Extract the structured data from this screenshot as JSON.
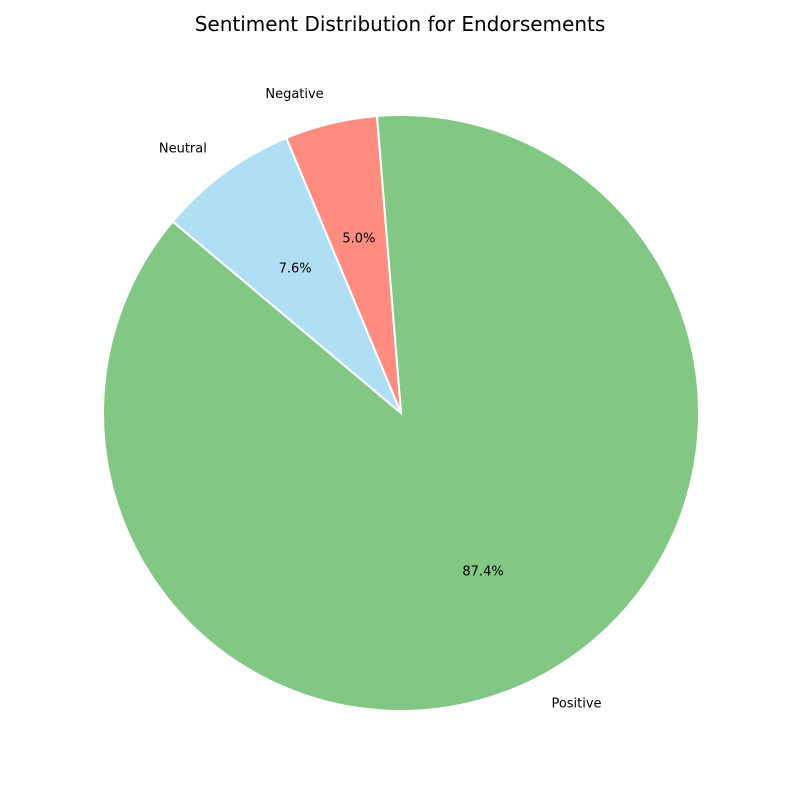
{
  "chart_data": {
    "type": "pie",
    "title": "Sentiment Distribution for Endorsements",
    "categories": [
      "Positive",
      "Negative",
      "Neutral"
    ],
    "values": [
      87.4,
      5.0,
      7.6
    ],
    "percent_labels": [
      "87.4%",
      "5.0%",
      "7.6%"
    ],
    "colors": [
      "#82c884",
      "#ff8c80",
      "#b0dff5"
    ],
    "start_angle_deg": 140,
    "direction": "counterclockwise",
    "legend": false
  }
}
